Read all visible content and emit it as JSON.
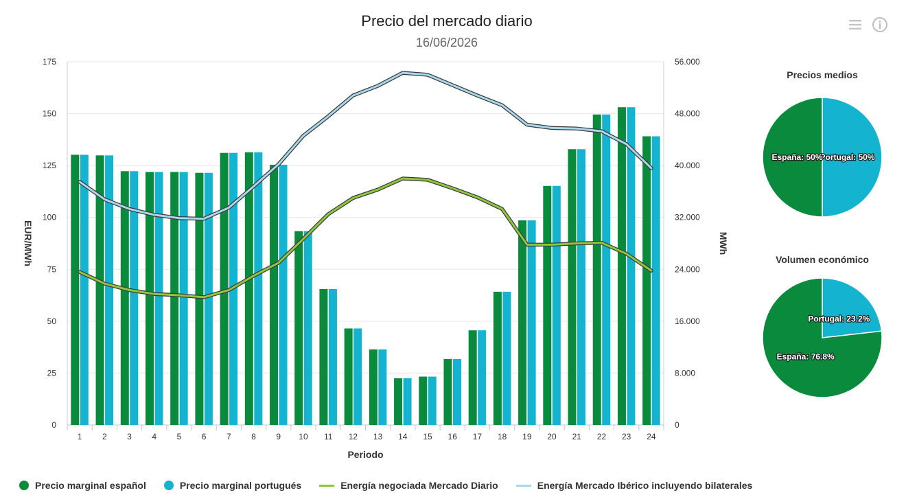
{
  "header": {
    "title": "Precio del mercado diario",
    "subtitle": "16/06/2026"
  },
  "icons": {
    "menu": "hamburger-menu-icon",
    "info": "info-icon"
  },
  "colors": {
    "spain": "#0a8a3c",
    "portugal": "#14b3cf",
    "energy_daily": "#8dc73f",
    "energy_iberian": "#a8d8ec",
    "line_outline": "#3c3c3c",
    "grid": "#e6e6e6"
  },
  "legend": [
    {
      "label": "Precio marginal español",
      "kind": "dot",
      "color": "#0a8a3c"
    },
    {
      "label": "Precio marginal portugués",
      "kind": "dot",
      "color": "#14b3cf"
    },
    {
      "label": "Energía negociada Mercado Diario",
      "kind": "line",
      "color": "#8dc73f"
    },
    {
      "label": "Energía Mercado Ibérico incluyendo bilaterales",
      "kind": "line",
      "color": "#a8d8ec"
    }
  ],
  "chart_data": [
    {
      "type": "bar",
      "xlabel": "Periodo",
      "ylabel": "EUR/MWh",
      "y2label": "MWh",
      "categories": [
        "1",
        "2",
        "3",
        "4",
        "5",
        "6",
        "7",
        "8",
        "9",
        "10",
        "11",
        "12",
        "13",
        "14",
        "15",
        "16",
        "17",
        "18",
        "19",
        "20",
        "21",
        "22",
        "23",
        "24"
      ],
      "ylim": [
        0,
        175
      ],
      "yticks": [
        "0",
        "25",
        "50",
        "75",
        "100",
        "125",
        "150",
        "175"
      ],
      "y2lim": [
        0,
        56000
      ],
      "y2ticks": [
        "0",
        "8.000",
        "16.000",
        "24.000",
        "32.000",
        "40.000",
        "48.000",
        "56.000"
      ],
      "grid": true,
      "series": [
        {
          "name": "Precio marginal español",
          "type": "bar",
          "axis": "left",
          "values": [
            130.2,
            129.9,
            122.3,
            121.9,
            121.9,
            121.5,
            131.1,
            131.4,
            125.4,
            93.4,
            65.5,
            46.5,
            36.4,
            22.5,
            23.3,
            31.8,
            45.6,
            64.2,
            98.6,
            115.2,
            132.9,
            149.6,
            153.1,
            139.1
          ]
        },
        {
          "name": "Precio marginal portugués",
          "type": "bar",
          "axis": "left",
          "values": [
            130.2,
            129.9,
            122.3,
            121.9,
            121.9,
            121.5,
            131.1,
            131.4,
            125.4,
            93.4,
            65.5,
            46.5,
            36.4,
            22.5,
            23.3,
            31.8,
            45.6,
            64.2,
            98.6,
            115.2,
            132.9,
            149.6,
            153.1,
            139.1
          ]
        },
        {
          "name": "Energía negociada Mercado Diario",
          "type": "line",
          "axis": "right",
          "values": [
            23600,
            21800,
            20800,
            20200,
            20000,
            19700,
            20800,
            23000,
            25000,
            28700,
            32500,
            35000,
            36300,
            38000,
            37800,
            36500,
            35100,
            33300,
            27800,
            27800,
            28000,
            28100,
            26400,
            23800
          ]
        },
        {
          "name": "Energía Mercado Ibérico incluyendo bilaterales",
          "type": "line",
          "axis": "right",
          "values": [
            37500,
            34800,
            33300,
            32400,
            31900,
            31800,
            33500,
            36800,
            40200,
            44600,
            47600,
            50800,
            52300,
            54300,
            54000,
            52400,
            50800,
            49300,
            46300,
            45800,
            45700,
            45300,
            43300,
            39600
          ]
        }
      ]
    },
    {
      "type": "pie",
      "title": "Precios medios",
      "slices": [
        {
          "label": "Portugal: 50%",
          "value": 50,
          "color": "#14b3cf"
        },
        {
          "label": "España: 50%",
          "value": 50,
          "color": "#0a8a3c"
        }
      ]
    },
    {
      "type": "pie",
      "title": "Volumen económico",
      "slices": [
        {
          "label": "Portugal: 23.2%",
          "value": 23.2,
          "color": "#14b3cf"
        },
        {
          "label": "España: 76.8%",
          "value": 76.8,
          "color": "#0a8a3c"
        }
      ]
    }
  ]
}
